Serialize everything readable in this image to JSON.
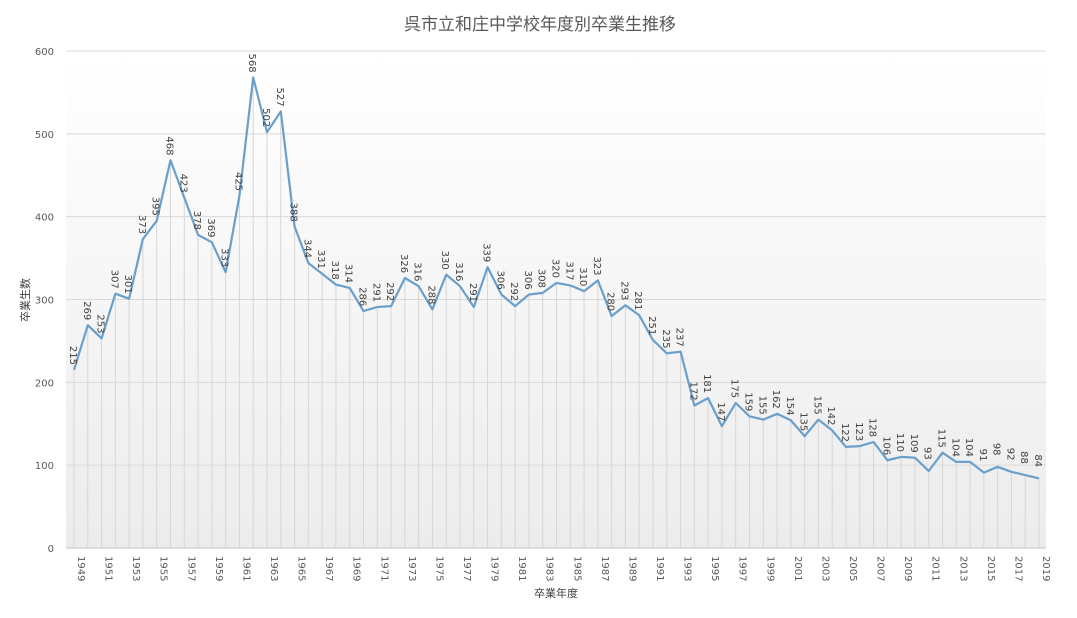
{
  "chart_data": {
    "type": "line",
    "title": "呉市立和庄中学校年度別卒業生推移",
    "xlabel": "卒業年度",
    "ylabel": "卒業生数",
    "ylim": [
      0,
      600
    ],
    "yticks": [
      0,
      100,
      200,
      300,
      400,
      500,
      600
    ],
    "grid": true,
    "legend": "none",
    "series_color": "#6a9fcb",
    "x": [
      1949,
      1950,
      1951,
      1952,
      1953,
      1954,
      1955,
      1956,
      1957,
      1958,
      1959,
      1960,
      1961,
      1962,
      1963,
      1964,
      1965,
      1966,
      1967,
      1968,
      1969,
      1970,
      1971,
      1972,
      1973,
      1974,
      1975,
      1976,
      1977,
      1978,
      1979,
      1980,
      1981,
      1982,
      1983,
      1984,
      1985,
      1986,
      1987,
      1988,
      1989,
      1990,
      1991,
      1992,
      1993,
      1994,
      1995,
      1996,
      1997,
      1998,
      1999,
      2000,
      2001,
      2002,
      2003,
      2004,
      2005,
      2006,
      2007,
      2008,
      2009,
      2010,
      2011,
      2012,
      2013,
      2014,
      2015,
      2016,
      2017,
      2018,
      2019
    ],
    "x_tick_labels": [
      "1949",
      "1951",
      "1953",
      "1955",
      "1957",
      "1959",
      "1961",
      "1963",
      "1965",
      "1967",
      "1969",
      "1971",
      "1973",
      "1975",
      "1977",
      "1979",
      "1981",
      "1983",
      "1985",
      "1987",
      "1989",
      "1991",
      "1993",
      "1995",
      "1997",
      "1999",
      "2001",
      "2003",
      "2005",
      "2007",
      "2009",
      "2011",
      "2013",
      "2015",
      "2017",
      "2019"
    ],
    "values": [
      215,
      269,
      253,
      307,
      301,
      373,
      395,
      468,
      423,
      378,
      369,
      333,
      425,
      568,
      502,
      527,
      388,
      344,
      331,
      318,
      314,
      286,
      291,
      292,
      326,
      316,
      288,
      330,
      316,
      291,
      339,
      306,
      292,
      306,
      308,
      320,
      317,
      310,
      323,
      280,
      293,
      281,
      251,
      235,
      237,
      172,
      181,
      147,
      175,
      159,
      155,
      162,
      154,
      135,
      155,
      142,
      122,
      123,
      128,
      106,
      110,
      109,
      93,
      115,
      104,
      104,
      91,
      98,
      92,
      88,
      84
    ]
  }
}
